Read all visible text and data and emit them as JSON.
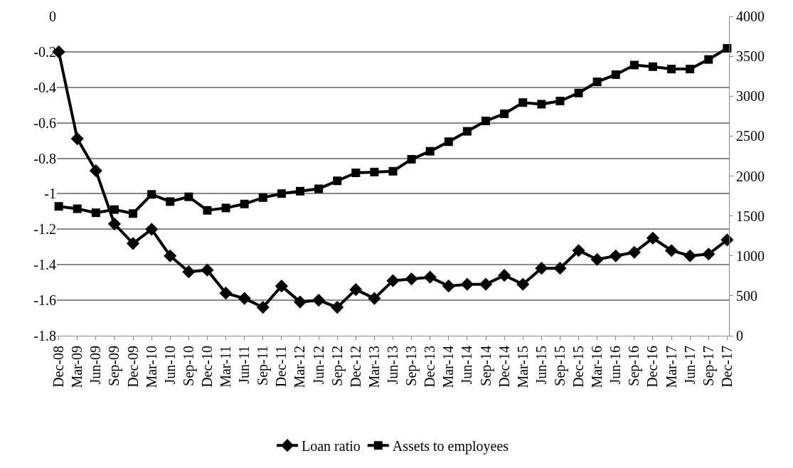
{
  "chart_data": {
    "type": "line",
    "categories": [
      "Dec-08",
      "Mar-09",
      "Jun-09",
      "Sep-09",
      "Dec-09",
      "Mar-10",
      "Jun-10",
      "Sep-10",
      "Dec-10",
      "Mar-11",
      "Jun-11",
      "Sep-11",
      "Dec-11",
      "Mar-12",
      "Jun-12",
      "Sep-12",
      "Dec-12",
      "Mar-13",
      "Jun-13",
      "Sep-13",
      "Dec-13",
      "Mar-14",
      "Jun-14",
      "Sep-14",
      "Dec-14",
      "Mar-15",
      "Jun-15",
      "Sep-15",
      "Dec-15",
      "Mar-16",
      "Jun-16",
      "Sep-16",
      "Dec-16",
      "Mar-17",
      "Jun-17",
      "Sep-17",
      "Dec-17"
    ],
    "series": [
      {
        "name": "Loan ratio",
        "color": "#000000",
        "marker": "diamond",
        "values": [
          -0.2,
          -0.69,
          -0.87,
          -1.17,
          -1.28,
          -1.2,
          -1.35,
          -1.44,
          -1.43,
          -1.56,
          -1.59,
          -1.64,
          -1.52,
          -1.61,
          -1.6,
          -1.64,
          -1.54,
          -1.59,
          -1.49,
          -1.48,
          -1.47,
          -1.52,
          -1.51,
          -1.51,
          -1.46,
          -1.51,
          -1.42,
          -1.42,
          -1.32,
          -1.37,
          -1.35,
          -1.33,
          -1.25,
          -1.32,
          -1.35,
          -1.34,
          -1.26
        ]
      },
      {
        "name": "Assets to employees",
        "color": "#000000",
        "marker": "square",
        "axis": "y2",
        "values": [
          1620,
          1590,
          1540,
          1580,
          1530,
          1770,
          1680,
          1740,
          1570,
          1600,
          1650,
          1730,
          1780,
          1810,
          1840,
          1940,
          2040,
          2050,
          2060,
          2210,
          2310,
          2430,
          2560,
          2690,
          2780,
          2920,
          2900,
          2940,
          3040,
          3180,
          3270,
          3390,
          3370,
          3340,
          3340,
          3460,
          3600
        ]
      }
    ],
    "ylim": [
      -1.8,
      0
    ],
    "yticks": [
      -1.8,
      -1.6,
      -1.4,
      -1.2,
      -1,
      -0.8,
      -0.6,
      -0.4,
      -0.2,
      0
    ],
    "y2lim": [
      0,
      4000
    ],
    "y2ticks": [
      0,
      500,
      1000,
      1500,
      2000,
      2500,
      3000,
      3500,
      4000
    ],
    "grid": "y",
    "legend": "bottom",
    "line_style": "solid"
  }
}
